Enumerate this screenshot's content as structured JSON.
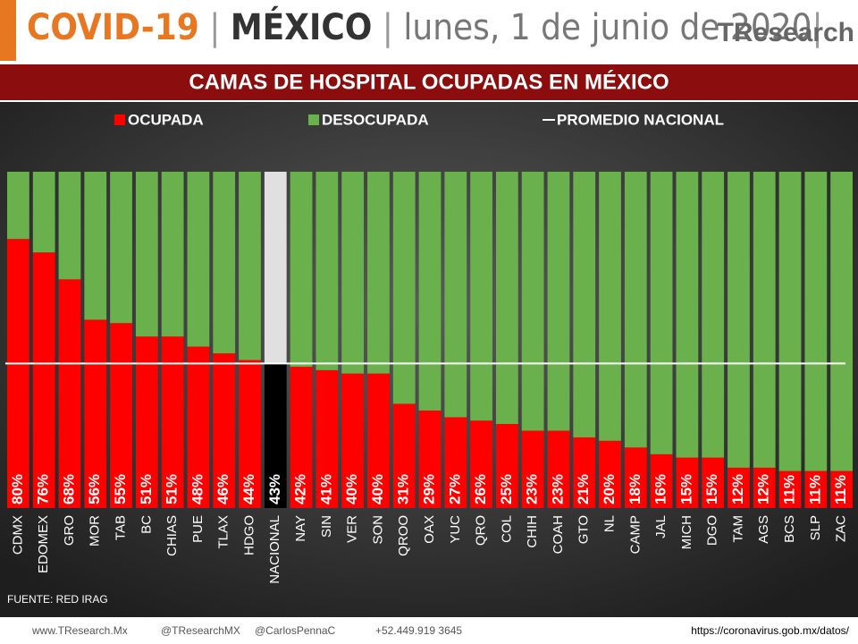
{
  "header": {
    "left": "COVID-19",
    "country": "MÉXICO",
    "date": "lunes, 1 de junio de 2020",
    "logo": "TResearch"
  },
  "chart_data": {
    "type": "stacked_bar",
    "title": "CAMAS DE HOSPITAL OCUPADAS  EN MÉXICO",
    "categories": [
      "CDMX",
      "EDOMEX",
      "GRO",
      "MOR",
      "TAB",
      "BC",
      "CHIAS",
      "PUE",
      "TLAX",
      "HDGO",
      "NACIONAL",
      "NAY",
      "SIN",
      "VER",
      "SON",
      "QROO",
      "OAX",
      "YUC",
      "QRO",
      "COL",
      "CHIH",
      "COAH",
      "GTO",
      "NL",
      "CAMP",
      "JAL",
      "MICH",
      "DGO",
      "TAM",
      "AGS",
      "BCS",
      "SLP",
      "ZAC"
    ],
    "series": [
      {
        "name": "OCUPADA",
        "color": "#ff0000",
        "values": [
          80,
          76,
          68,
          56,
          55,
          51,
          51,
          48,
          46,
          44,
          43,
          42,
          41,
          40,
          40,
          31,
          29,
          27,
          26,
          25,
          23,
          23,
          21,
          20,
          18,
          16,
          15,
          15,
          12,
          12,
          11,
          11,
          11
        ],
        "value_labels": [
          "80%",
          "76%",
          "68%",
          "56%",
          "55%",
          "51%",
          "51%",
          "48%",
          "46%",
          "44%",
          "43%",
          "42%",
          "41%",
          "40%",
          "40%",
          "31%",
          "29%",
          "27%",
          "26%",
          "25%",
          "23%",
          "23%",
          "21%",
          "20%",
          "18%",
          "16%",
          "15%",
          "15%",
          "12%",
          "12%",
          "11%",
          "11%",
          "11%"
        ]
      },
      {
        "name": "DESOCUPADA",
        "color": "#6ab04c",
        "values": [
          20,
          24,
          32,
          44,
          45,
          49,
          49,
          52,
          54,
          56,
          57,
          58,
          59,
          60,
          60,
          69,
          71,
          73,
          74,
          75,
          77,
          77,
          79,
          80,
          82,
          84,
          85,
          85,
          88,
          88,
          89,
          89,
          89
        ]
      }
    ],
    "highlight": {
      "index": 10,
      "colors": [
        "#000000",
        "#e0e0e0"
      ]
    },
    "reference_line": {
      "name": "PROMEDIO NACIONAL",
      "value": 43,
      "color": "#ffffff"
    },
    "ylim": [
      0,
      100
    ],
    "source": "FUENTE: RED IRAG"
  },
  "footer": {
    "web": "www.TResearch.Mx",
    "twitter1": "@TResearchMX",
    "twitter2": "@CarlosPennaC",
    "phone": "+52.449.919 3645",
    "url": "https://coronavirus.gob.mx/datos/"
  }
}
